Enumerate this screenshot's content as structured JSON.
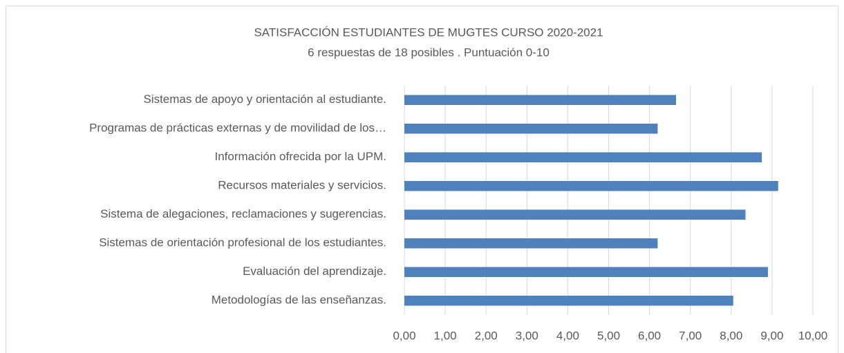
{
  "chart_data": {
    "type": "bar",
    "orientation": "horizontal",
    "title": "SATISFACCIÓN ESTUDIANTES DE MUGTES CURSO 2020-2021",
    "subtitle": "6 respuestas de 18 posibles . Puntuación 0-10",
    "categories": [
      "Metodologías de las enseñanzas.",
      "Evaluación del aprendizaje.",
      "Sistemas de orientación profesional de los estudiantes.",
      "Sistema de alegaciones, reclamaciones y sugerencias.",
      "Recursos materiales y servicios.",
      "Información ofrecida por la UPM.",
      "Programas de prácticas externas y de movilidad de los…",
      "Sistemas de apoyo y orientación al estudiante."
    ],
    "values": [
      8.05,
      8.9,
      6.2,
      8.35,
      9.15,
      8.75,
      6.2,
      6.65
    ],
    "color": "#4f81bd",
    "xlim": [
      0,
      10
    ],
    "xticks": [
      {
        "value": 0,
        "label": "0,00"
      },
      {
        "value": 1,
        "label": "1,00"
      },
      {
        "value": 2,
        "label": "2,00"
      },
      {
        "value": 3,
        "label": "3,00"
      },
      {
        "value": 4,
        "label": "4,00"
      },
      {
        "value": 5,
        "label": "5,00"
      },
      {
        "value": 6,
        "label": "6,00"
      },
      {
        "value": 7,
        "label": "7,00"
      },
      {
        "value": 8,
        "label": "8,00"
      },
      {
        "value": 9,
        "label": "9,00"
      },
      {
        "value": 10,
        "label": "10,00"
      }
    ],
    "grid": true
  }
}
